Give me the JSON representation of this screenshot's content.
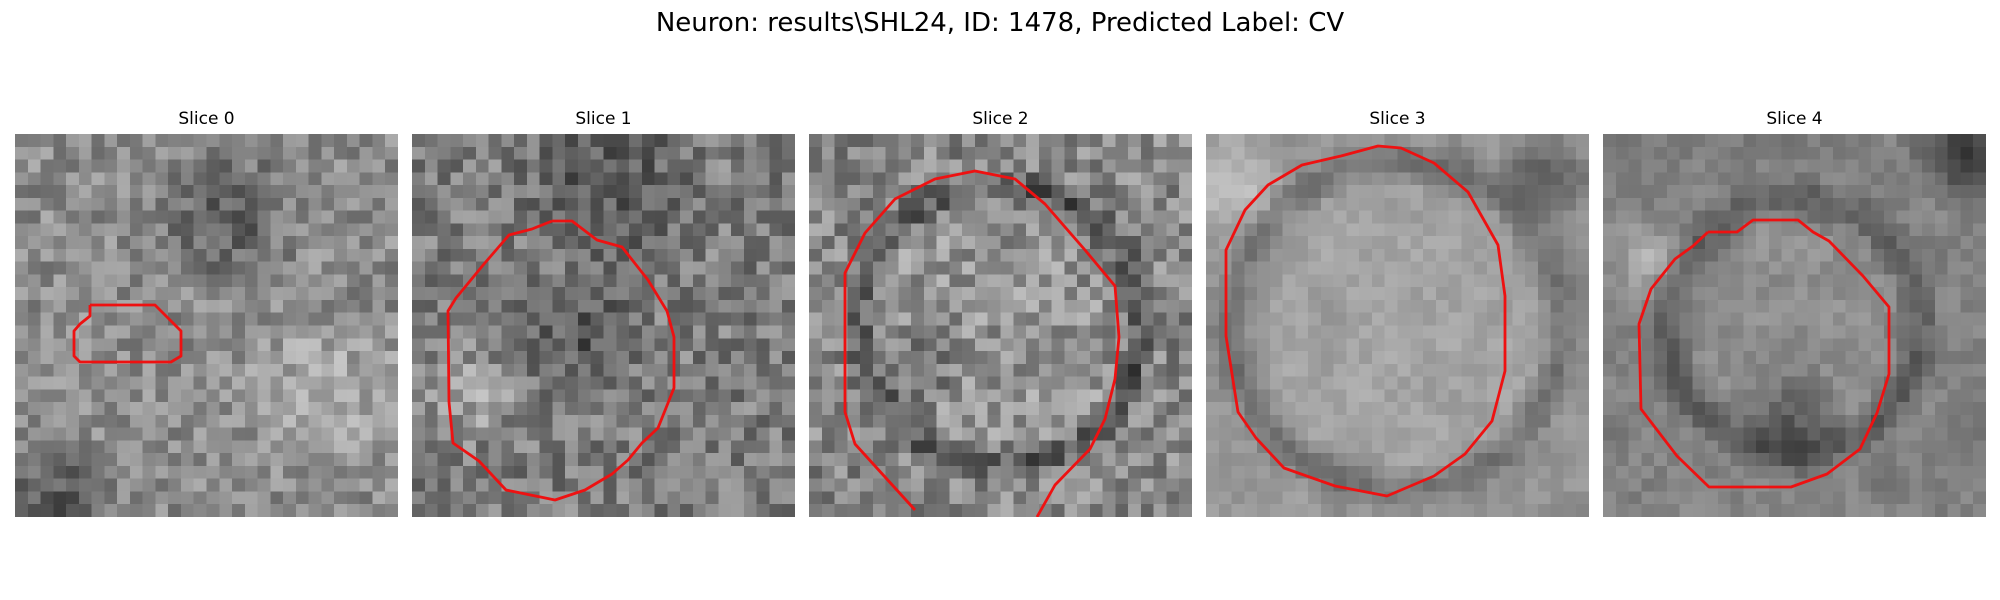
{
  "figure": {
    "title": "Neuron: results\\SHL24, ID: 1478, Predicted Label: CV"
  },
  "colors": {
    "contour": "#ee1111",
    "background": "#ffffff"
  },
  "image_panels": [
    {
      "title": "Slice 0",
      "colormap": "gray"
    },
    {
      "title": "Slice 1",
      "colormap": "gray"
    },
    {
      "title": "Slice 2",
      "colormap": "gray"
    },
    {
      "title": "Slice 3",
      "colormap": "gray"
    },
    {
      "title": "Slice 4",
      "colormap": "gray"
    }
  ]
}
